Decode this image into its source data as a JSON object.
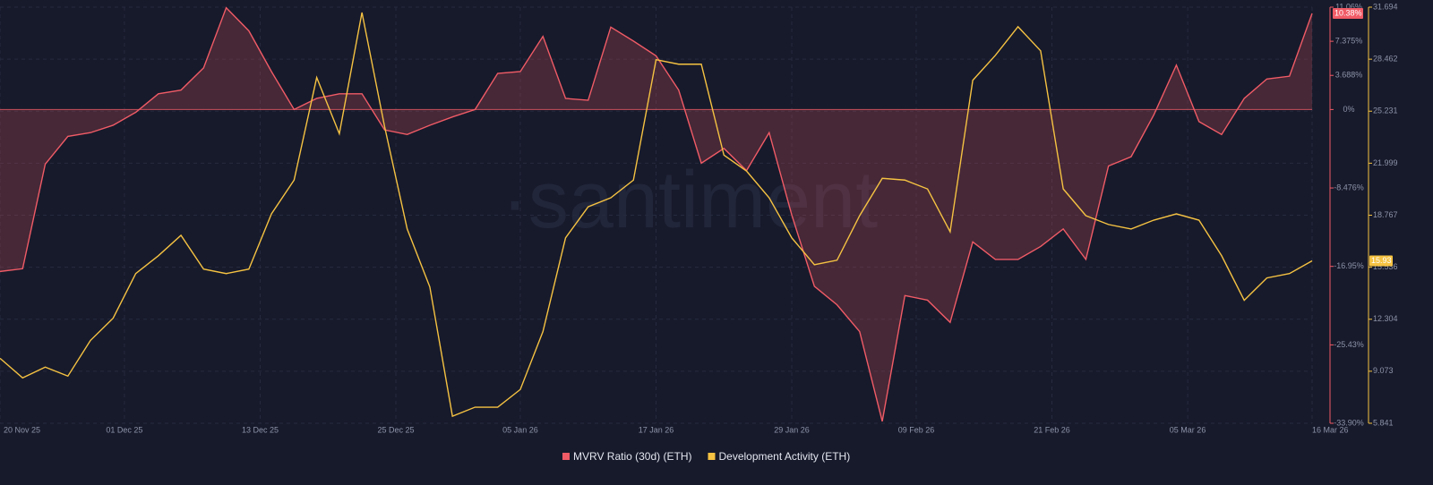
{
  "chart_data": {
    "type": "line",
    "watermark": "·santiment",
    "x": [
      0,
      2,
      4,
      6,
      8,
      10,
      12,
      14,
      16,
      18,
      20,
      22,
      24,
      26,
      28,
      30,
      32,
      34,
      36,
      38,
      40,
      42,
      44,
      46,
      48,
      50,
      52,
      54,
      56,
      58,
      60,
      62,
      64,
      66,
      68,
      70,
      72,
      74,
      76,
      78,
      80,
      82,
      84,
      86,
      88,
      90,
      92,
      94,
      96,
      98,
      100,
      102,
      104,
      106,
      108,
      110,
      112,
      114,
      116
    ],
    "xlim": [
      0,
      116
    ],
    "xticks": [
      {
        "value": 0,
        "label": "20 Nov 25"
      },
      {
        "value": 11,
        "label": "01 Dec 25"
      },
      {
        "value": 23,
        "label": "13 Dec 25"
      },
      {
        "value": 35,
        "label": "25 Dec 25"
      },
      {
        "value": 46,
        "label": "05 Jan 26"
      },
      {
        "value": 58,
        "label": "17 Jan 26"
      },
      {
        "value": 70,
        "label": "29 Jan 26"
      },
      {
        "value": 81,
        "label": "09 Feb 26"
      },
      {
        "value": 93,
        "label": "21 Feb 26"
      },
      {
        "value": 105,
        "label": "05 Mar 26"
      },
      {
        "value": 116,
        "label": "16 Mar 26"
      }
    ],
    "ylim": [
      -33.9,
      11.06
    ],
    "yticks": [
      {
        "value": 11.06,
        "label": "11.06%"
      },
      {
        "value": 7.375,
        "label": "7.375%"
      },
      {
        "value": 3.688,
        "label": "3.688%"
      },
      {
        "value": 0,
        "label": "0%"
      },
      {
        "value": -8.476,
        "label": "-8.476%"
      },
      {
        "value": -16.95,
        "label": "-16.95%"
      },
      {
        "value": -25.43,
        "label": "-25.43%"
      },
      {
        "value": -33.9,
        "label": "-33.90%"
      }
    ],
    "y2lim": [
      5.841,
      31.694
    ],
    "y2ticks": [
      31.694,
      28.462,
      25.231,
      21.999,
      18.767,
      15.536,
      12.304,
      9.073,
      5.841
    ],
    "grid": true,
    "legend": "bottom",
    "series": [
      {
        "name": "MVRV Ratio (30d) (ETH)",
        "color": "#f05b66",
        "axis": "y",
        "fill": "area",
        "last_label": "10.38%",
        "values": [
          -17.5,
          -17.2,
          -5.9,
          -2.9,
          -2.5,
          -1.7,
          -0.3,
          1.7,
          2.1,
          4.5,
          11.0,
          8.5,
          4.1,
          0,
          1.2,
          1.7,
          1.7,
          -2.2,
          -2.7,
          -1.7,
          -0.8,
          0,
          3.9,
          4.1,
          7.9,
          1.2,
          1.0,
          8.9,
          7.4,
          5.8,
          2.1,
          -5.8,
          -4.2,
          -6.6,
          -2.5,
          -11.4,
          -19.1,
          -21.1,
          -24.0,
          -33.7,
          -20.1,
          -20.6,
          -23.0,
          -14.3,
          -16.2,
          -16.2,
          -14.8,
          -12.9,
          -16.2,
          -6.1,
          -5.1,
          -0.6,
          4.8,
          -1.3,
          -2.7,
          1.2,
          3.3,
          3.6,
          10.38
        ]
      },
      {
        "name": "Development Activity (ETH)",
        "color": "#f5c242",
        "axis": "y2",
        "last_label": "15.93",
        "values": [
          9.88,
          8.66,
          9.33,
          8.77,
          10.99,
          12.37,
          15.14,
          16.25,
          17.52,
          15.42,
          15.14,
          15.42,
          18.85,
          20.95,
          27.32,
          23.83,
          31.36,
          24.28,
          17.91,
          14.31,
          6.28,
          6.84,
          6.84,
          7.94,
          11.54,
          17.36,
          19.29,
          19.85,
          20.95,
          28.43,
          28.15,
          28.15,
          22.5,
          21.51,
          19.85,
          17.36,
          15.69,
          15.97,
          18.74,
          21.06,
          20.95,
          20.4,
          17.74,
          27.15,
          28.7,
          30.48,
          28.98,
          20.4,
          18.74,
          18.19,
          17.91,
          18.46,
          18.85,
          18.46,
          16.25,
          13.48,
          14.87,
          15.14,
          15.93
        ]
      }
    ]
  }
}
